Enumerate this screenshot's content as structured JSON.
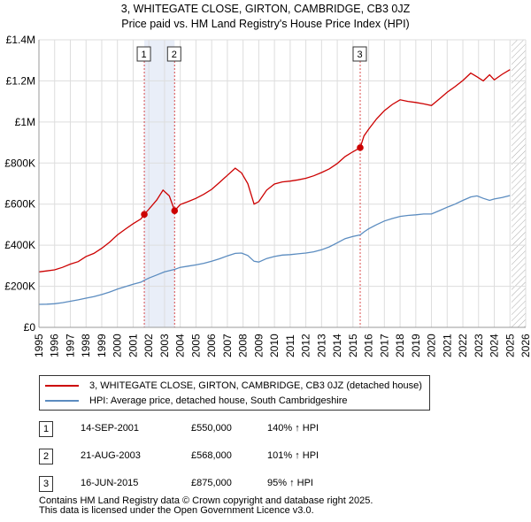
{
  "title_line1": "3, WHITEGATE CLOSE, GIRTON, CAMBRIDGE, CB3 0JZ",
  "title_line2": "Price paid vs. HM Land Registry's House Price Index (HPI)",
  "colors": {
    "property": "#cc0000",
    "hpi": "#5b8cc0",
    "band": "#e9eef8",
    "vline": "#cc0000",
    "hatch": "#999999"
  },
  "chart_data": {
    "type": "line",
    "xlim": [
      1995,
      2026
    ],
    "ylim": [
      0,
      1400000
    ],
    "y_ticks": [
      {
        "value": 0,
        "label": "£0"
      },
      {
        "value": 200000,
        "label": "£200K"
      },
      {
        "value": 400000,
        "label": "£400K"
      },
      {
        "value": 600000,
        "label": "£600K"
      },
      {
        "value": 800000,
        "label": "£800K"
      },
      {
        "value": 1000000,
        "label": "£1M"
      },
      {
        "value": 1200000,
        "label": "£1.2M"
      },
      {
        "value": 1400000,
        "label": "£1.4M"
      }
    ],
    "x_ticks": [
      "1995",
      "1996",
      "1997",
      "1998",
      "1999",
      "2000",
      "2001",
      "2002",
      "2003",
      "2004",
      "2005",
      "2006",
      "2007",
      "2008",
      "2009",
      "2010",
      "2011",
      "2012",
      "2013",
      "2014",
      "2015",
      "2016",
      "2017",
      "2018",
      "2019",
      "2020",
      "2021",
      "2022",
      "2023",
      "2024",
      "2025",
      "2026"
    ],
    "shaded_ranges": [
      [
        2001.71,
        2003.64
      ]
    ],
    "hatched_after": 2025.1,
    "series": [
      {
        "name": "3, WHITEGATE CLOSE, GIRTON, CAMBRIDGE, CB3 0JZ (detached house)",
        "x": [
          1995.0,
          1995.5,
          1996.0,
          1996.5,
          1997.0,
          1997.5,
          1998.0,
          1998.5,
          1999.0,
          1999.5,
          2000.0,
          2000.5,
          2001.0,
          2001.5,
          2001.71,
          2002.0,
          2002.5,
          2002.9,
          2003.3,
          2003.64,
          2004.0,
          2004.5,
          2005.0,
          2005.5,
          2006.0,
          2006.5,
          2007.0,
          2007.5,
          2007.9,
          2008.3,
          2008.7,
          2009.0,
          2009.5,
          2010.0,
          2010.5,
          2011.0,
          2011.5,
          2012.0,
          2012.5,
          2013.0,
          2013.5,
          2014.0,
          2014.5,
          2015.0,
          2015.46,
          2015.7,
          2016.0,
          2016.5,
          2017.0,
          2017.5,
          2018.0,
          2018.5,
          2019.0,
          2019.5,
          2020.0,
          2020.5,
          2021.0,
          2021.5,
          2022.0,
          2022.5,
          2022.9,
          2023.3,
          2023.7,
          2024.0,
          2024.5,
          2025.0
        ],
        "values": [
          270000,
          275000,
          280000,
          292000,
          308000,
          320000,
          345000,
          360000,
          385000,
          415000,
          450000,
          478000,
          505000,
          528000,
          550000,
          575000,
          620000,
          668000,
          640000,
          568000,
          598000,
          612000,
          628000,
          648000,
          672000,
          705000,
          740000,
          775000,
          752000,
          700000,
          600000,
          612000,
          668000,
          698000,
          708000,
          712000,
          718000,
          726000,
          738000,
          754000,
          772000,
          798000,
          832000,
          855000,
          875000,
          932000,
          965000,
          1015000,
          1055000,
          1085000,
          1108000,
          1100000,
          1095000,
          1088000,
          1080000,
          1112000,
          1145000,
          1172000,
          1202000,
          1238000,
          1220000,
          1200000,
          1230000,
          1205000,
          1232000,
          1255000
        ]
      },
      {
        "name": "HPI: Average price, detached house, South Cambridgeshire",
        "x": [
          1995.0,
          1995.5,
          1996.0,
          1996.5,
          1997.0,
          1997.5,
          1998.0,
          1998.5,
          1999.0,
          1999.5,
          2000.0,
          2000.5,
          2001.0,
          2001.5,
          2001.71,
          2002.0,
          2002.5,
          2003.0,
          2003.64,
          2004.0,
          2004.5,
          2005.0,
          2005.5,
          2006.0,
          2006.5,
          2007.0,
          2007.5,
          2007.9,
          2008.3,
          2008.7,
          2009.0,
          2009.5,
          2010.0,
          2010.5,
          2011.0,
          2011.5,
          2012.0,
          2012.5,
          2013.0,
          2013.5,
          2014.0,
          2014.5,
          2015.0,
          2015.46,
          2015.7,
          2016.0,
          2016.5,
          2017.0,
          2017.5,
          2018.0,
          2018.5,
          2019.0,
          2019.5,
          2020.0,
          2020.5,
          2021.0,
          2021.5,
          2022.0,
          2022.5,
          2022.9,
          2023.3,
          2023.7,
          2024.0,
          2024.5,
          2025.0
        ],
        "values": [
          112000,
          113000,
          115000,
          120000,
          127000,
          134000,
          142000,
          150000,
          160000,
          172000,
          186000,
          198000,
          210000,
          220000,
          229000,
          240000,
          255000,
          270000,
          282000,
          292000,
          298000,
          304000,
          312000,
          322000,
          334000,
          348000,
          360000,
          362000,
          350000,
          322000,
          318000,
          335000,
          345000,
          352000,
          354000,
          358000,
          362000,
          368000,
          378000,
          392000,
          412000,
          432000,
          443000,
          450000,
          465000,
          480000,
          500000,
          518000,
          530000,
          540000,
          545000,
          548000,
          552000,
          552000,
          568000,
          585000,
          600000,
          618000,
          635000,
          640000,
          628000,
          618000,
          625000,
          632000,
          642000
        ]
      }
    ],
    "markers": [
      {
        "label": "1",
        "x": 2001.71,
        "y": 550000
      },
      {
        "label": "2",
        "x": 2003.64,
        "y": 568000
      },
      {
        "label": "3",
        "x": 2015.46,
        "y": 875000
      }
    ]
  },
  "legend": {
    "property_label": "3, WHITEGATE CLOSE, GIRTON, CAMBRIDGE, CB3 0JZ (detached house)",
    "hpi_label": "HPI: Average price, detached house, South Cambridgeshire"
  },
  "transactions": [
    {
      "num": "1",
      "date": "14-SEP-2001",
      "price": "£550,000",
      "hpi": "140% ↑ HPI"
    },
    {
      "num": "2",
      "date": "21-AUG-2003",
      "price": "£568,000",
      "hpi": "101% ↑ HPI"
    },
    {
      "num": "3",
      "date": "16-JUN-2015",
      "price": "£875,000",
      "hpi": "95% ↑ HPI"
    }
  ],
  "footer_line1": "Contains HM Land Registry data © Crown copyright and database right 2025.",
  "footer_line2": "This data is licensed under the Open Government Licence v3.0."
}
